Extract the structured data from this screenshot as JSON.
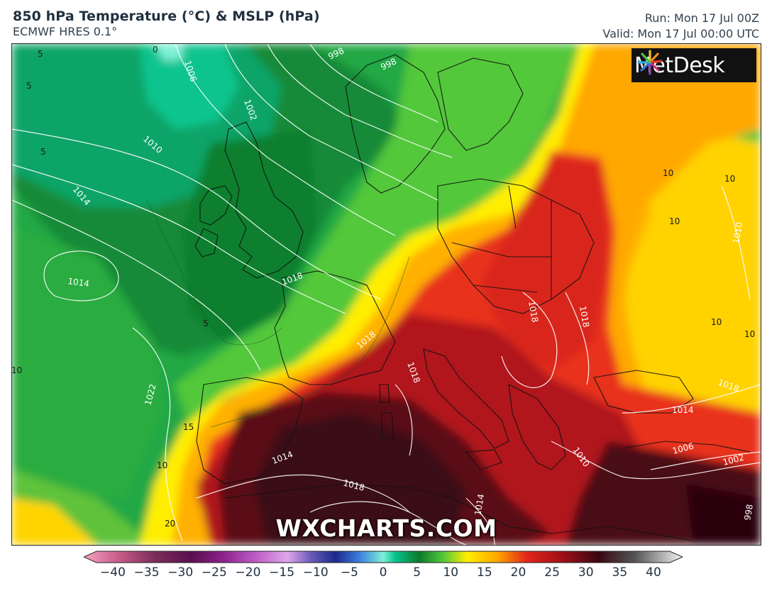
{
  "header": {
    "title": "850 hPa Temperature (°C) & MSLP (hPa)",
    "model": "ECMWF HRES 0.1°",
    "run": "Run: Mon 17 Jul 00Z",
    "valid": "Valid: Mon 17 Jul 00:00 UTC"
  },
  "logo": {
    "text": "MetDesk"
  },
  "watermark": "WXCHARTS.COM",
  "colors": {
    "cold_sea": "#1e9a44",
    "deep_green": "#0c7a2c",
    "teal": "#12b07a",
    "light_green": "#4cc83a",
    "yellow": "#ffe600",
    "orange": "#ff9a00",
    "red": "#e3251a",
    "dark_red": "#9e0f18",
    "maroon": "#3a0812"
  },
  "isobar_labels": [
    {
      "text": "998"
    },
    {
      "text": "998"
    },
    {
      "text": "1002"
    },
    {
      "text": "1006"
    },
    {
      "text": "1010"
    },
    {
      "text": "1014"
    },
    {
      "text": "1014"
    },
    {
      "text": "1018"
    },
    {
      "text": "1022"
    },
    {
      "text": "1018"
    },
    {
      "text": "1018"
    },
    {
      "text": "1018"
    },
    {
      "text": "1014"
    },
    {
      "text": "1018"
    },
    {
      "text": "1014"
    },
    {
      "text": "1010"
    },
    {
      "text": "1006"
    },
    {
      "text": "1002"
    },
    {
      "text": "998"
    },
    {
      "text": "1010"
    },
    {
      "text": "1018"
    },
    {
      "text": "1014"
    },
    {
      "text": "1018"
    }
  ],
  "temp_labels": [
    {
      "text": "0"
    },
    {
      "text": "5"
    },
    {
      "text": "5"
    },
    {
      "text": "5"
    },
    {
      "text": "5"
    },
    {
      "text": "10"
    },
    {
      "text": "15"
    },
    {
      "text": "10"
    },
    {
      "text": "20"
    },
    {
      "text": "10"
    },
    {
      "text": "10"
    },
    {
      "text": "10"
    },
    {
      "text": "10"
    },
    {
      "text": "10"
    }
  ],
  "colorbar": {
    "min": -40,
    "max": 40,
    "ticks": [
      "−40",
      "−35",
      "−30",
      "−25",
      "−20",
      "−15",
      "−10",
      "−5",
      "0",
      "5",
      "10",
      "15",
      "20",
      "25",
      "30",
      "35",
      "40"
    ]
  }
}
